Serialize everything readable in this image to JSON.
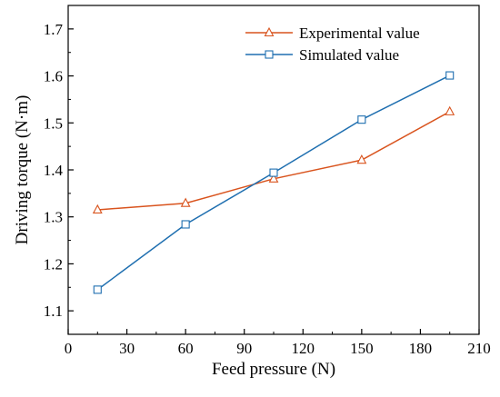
{
  "chart_data": {
    "type": "line",
    "xlabel": "Feed pressure (N)",
    "ylabel": "Driving torque (N·m)",
    "xlim": [
      0,
      210
    ],
    "ylim": [
      1.05,
      1.75
    ],
    "xticks": [
      0,
      30,
      60,
      90,
      120,
      150,
      180,
      210
    ],
    "yticks": [
      1.1,
      1.2,
      1.3,
      1.4,
      1.5,
      1.6,
      1.7
    ],
    "xtick_labels": [
      "0",
      "30",
      "60",
      "90",
      "120",
      "150",
      "180",
      "210"
    ],
    "ytick_labels": [
      "1.1",
      "1.2",
      "1.3",
      "1.4",
      "1.5",
      "1.6",
      "1.7"
    ],
    "grid": false,
    "legend_position": "top-right",
    "series": [
      {
        "name": "Experimental value",
        "color": "#d9541e",
        "marker": "triangle",
        "x": [
          15,
          60,
          105,
          150,
          195
        ],
        "y": [
          1.315,
          1.329,
          1.381,
          1.421,
          1.524
        ]
      },
      {
        "name": "Simulated value",
        "color": "#1f6fb0",
        "marker": "square",
        "x": [
          15,
          60,
          105,
          150,
          195
        ],
        "y": [
          1.145,
          1.284,
          1.394,
          1.507,
          1.601
        ]
      }
    ]
  }
}
